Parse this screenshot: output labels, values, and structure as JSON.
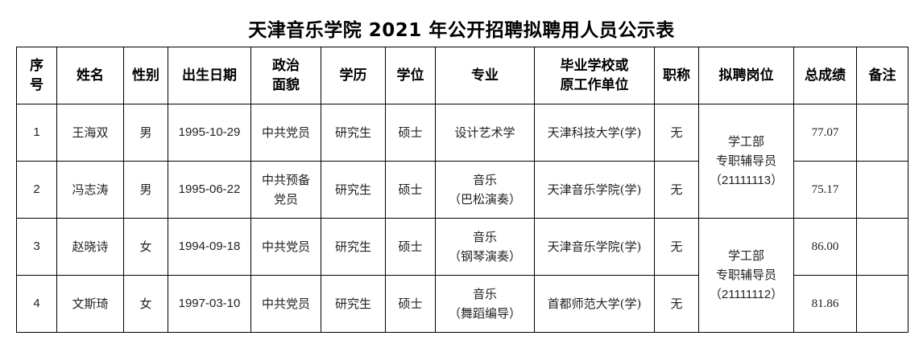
{
  "title": "天津音乐学院 2021 年公开招聘拟聘用人员公示表",
  "headers": [
    "序\n号",
    "姓名",
    "性别",
    "出生日期",
    "政治\n面貌",
    "学历",
    "学位",
    "专业",
    "毕业学校或\n原工作单位",
    "职称",
    "拟聘岗位",
    "总成绩",
    "备注"
  ],
  "rows": [
    {
      "no": "1",
      "name": "王海双",
      "gender": "男",
      "birth": "1995-10-29",
      "political": "中共党员",
      "education": "研究生",
      "degree": "硕士",
      "major": "设计艺术学",
      "major_sub": "",
      "school": "天津科技大学(学)",
      "title": "无",
      "score": "77.07",
      "remark": ""
    },
    {
      "no": "2",
      "name": "冯志涛",
      "gender": "男",
      "birth": "1995-06-22",
      "political": "中共预备党员",
      "education": "研究生",
      "degree": "硕士",
      "major": "音乐",
      "major_sub": "（巴松演奏）",
      "school": "天津音乐学院(学)",
      "title": "无",
      "score": "75.17",
      "remark": ""
    },
    {
      "no": "3",
      "name": "赵晓诗",
      "gender": "女",
      "birth": "1994-09-18",
      "political": "中共党员",
      "education": "研究生",
      "degree": "硕士",
      "major": "音乐",
      "major_sub": "（钢琴演奏）",
      "school": "天津音乐学院(学)",
      "title": "无",
      "score": "86.00",
      "remark": ""
    },
    {
      "no": "4",
      "name": "文斯琦",
      "gender": "女",
      "birth": "1997-03-10",
      "political": "中共党员",
      "education": "研究生",
      "degree": "硕士",
      "major": "音乐",
      "major_sub": "（舞蹈编导）",
      "school": "首都师范大学(学)",
      "title": "无",
      "score": "81.86",
      "remark": ""
    }
  ],
  "posts": [
    {
      "dept": "学工部",
      "role": "专职辅导员",
      "code": "（21111113）"
    },
    {
      "dept": "学工部",
      "role": "专职辅导员",
      "code": "（21111112）"
    }
  ]
}
